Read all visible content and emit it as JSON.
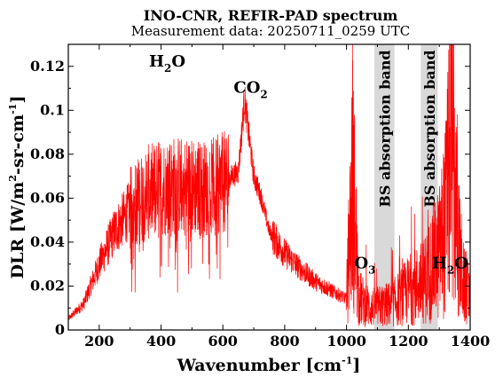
{
  "chart_data": {
    "type": "line",
    "title": "INO-CNR, REFIR-PAD spectrum",
    "subtitle": "Measurement data: 20250711_0259 UTC",
    "xlabel": "Wavenumber [cm",
    "xlabel_sup": "-1",
    "xlabel_end": "]",
    "ylabel": "DLR [W/m",
    "ylabel_sup1": "2",
    "ylabel_mid": "-sr-cm",
    "ylabel_sup2": "-1",
    "ylabel_end": "]",
    "xlim": [
      100,
      1400
    ],
    "ylim": [
      0,
      0.13
    ],
    "grid": false,
    "x_ticks": [
      200,
      400,
      600,
      800,
      1000,
      1200,
      1400
    ],
    "x_tick_labels": [
      "200",
      "400",
      "600",
      "800",
      "1000",
      "1200",
      "1400"
    ],
    "y_ticks": [
      0,
      0.02,
      0.04,
      0.06,
      0.08,
      0.1,
      0.12
    ],
    "y_tick_labels": [
      "0",
      "0.02",
      "0.04",
      "0.06",
      "0.08",
      "0.1",
      "0.12"
    ],
    "series": [
      {
        "color": "#ff0000",
        "x": [
          100,
          150,
          200,
          250,
          300,
          350,
          400,
          450,
          500,
          550,
          600,
          650,
          670,
          700,
          725,
          750,
          800,
          850,
          900,
          950,
          1000,
          1020,
          1040,
          1060,
          1080,
          1150,
          1200,
          1250,
          1280,
          1300,
          1320,
          1340,
          1360,
          1380,
          1400
        ],
        "y": [
          0.005,
          0.012,
          0.03,
          0.045,
          0.055,
          0.062,
          0.065,
          0.066,
          0.065,
          0.064,
          0.067,
          0.072,
          0.105,
          0.07,
          0.06,
          0.045,
          0.035,
          0.028,
          0.022,
          0.018,
          0.014,
          0.07,
          0.015,
          0.012,
          0.01,
          0.012,
          0.018,
          0.022,
          0.03,
          0.035,
          0.05,
          0.09,
          0.04,
          0.02,
          0.015
        ]
      }
    ],
    "bands": [
      {
        "x_from": 1090,
        "x_to": 1155,
        "color": "#d9d9d9",
        "label": "BS absorption band"
      },
      {
        "x_from": 1240,
        "x_to": 1295,
        "color": "#d9d9d9",
        "label": "BS absorption band"
      }
    ],
    "annotations": [
      {
        "main": "H",
        "sub": "2",
        "end": "O",
        "x": 420,
        "y": 0.12
      },
      {
        "main": "CO",
        "sub": "2",
        "end": "",
        "x": 690,
        "y": 0.108
      },
      {
        "main": "O",
        "sub": "3",
        "end": "",
        "x": 1060,
        "y": 0.028
      },
      {
        "main": "H",
        "sub": "2",
        "end": "O",
        "x": 1335,
        "y": 0.028
      }
    ]
  }
}
